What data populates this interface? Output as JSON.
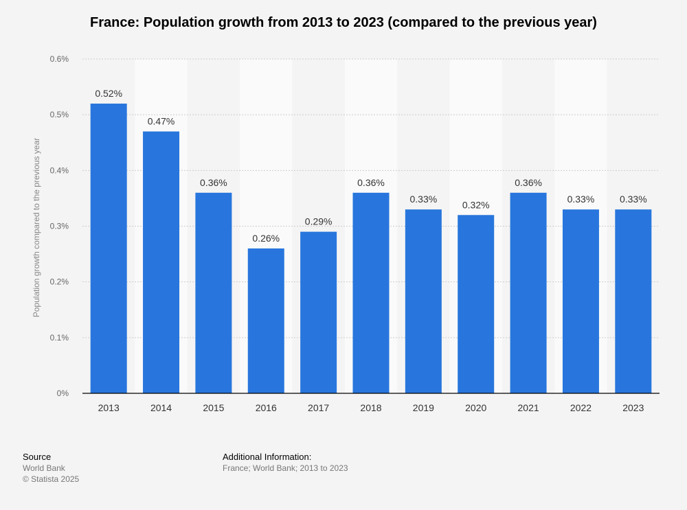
{
  "page": {
    "title": "France: Population growth from 2013 to 2023 (compared to the previous year)"
  },
  "chart_data": {
    "type": "bar",
    "title": "France: Population growth from 2013 to 2023 (compared to the previous year)",
    "xlabel": "",
    "ylabel": "Population growth compared to the previous year",
    "categories": [
      "2013",
      "2014",
      "2015",
      "2016",
      "2017",
      "2018",
      "2019",
      "2020",
      "2021",
      "2022",
      "2023"
    ],
    "values": [
      0.52,
      0.47,
      0.36,
      0.26,
      0.29,
      0.36,
      0.33,
      0.32,
      0.36,
      0.33,
      0.33
    ],
    "value_labels": [
      "0.52%",
      "0.47%",
      "0.36%",
      "0.26%",
      "0.29%",
      "0.36%",
      "0.33%",
      "0.32%",
      "0.36%",
      "0.33%",
      "0.33%"
    ],
    "yticks": [
      0,
      0.1,
      0.2,
      0.3,
      0.4,
      0.5,
      0.6
    ],
    "ytick_labels": [
      "0%",
      "0.1%",
      "0.2%",
      "0.3%",
      "0.4%",
      "0.5%",
      "0.6%"
    ],
    "ylim": [
      0,
      0.6
    ],
    "grid": true,
    "bar_color": "#2876dd"
  },
  "footer": {
    "source_heading": "Source",
    "source_lines": [
      "World Bank",
      "© Statista 2025"
    ],
    "info_heading": "Additional Information:",
    "info_text": "France; World Bank; 2013 to 2023"
  }
}
